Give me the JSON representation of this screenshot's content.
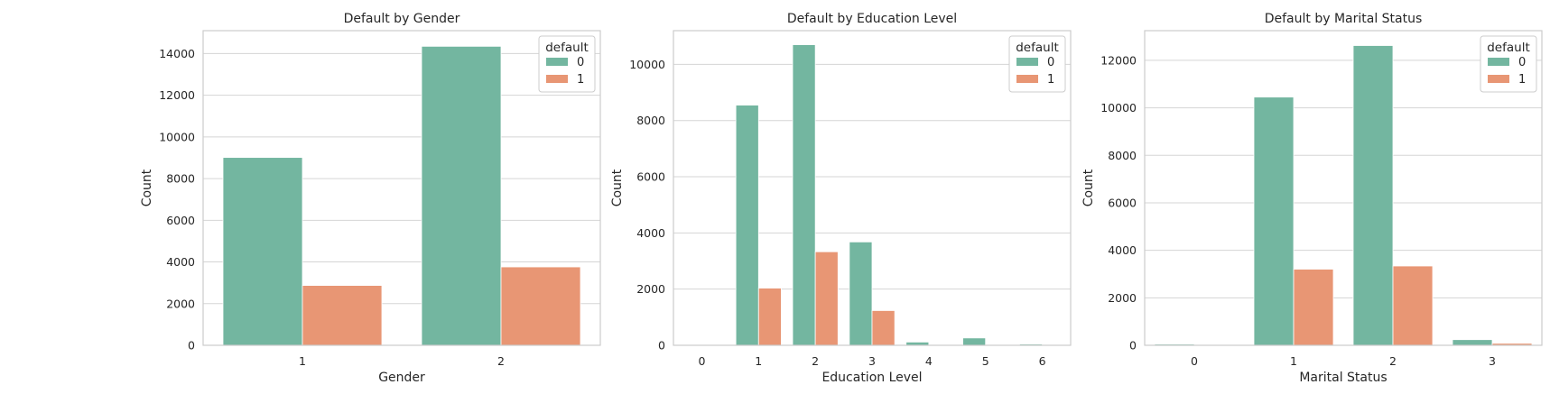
{
  "palette": {
    "series_0": "#73b6a0",
    "series_1": "#e89674",
    "grid": "#d5d5d5",
    "frame": "#cccccc"
  },
  "chart_data": [
    {
      "type": "bar",
      "title": "Default by Gender",
      "xlabel": "Gender",
      "ylabel": "Count",
      "categories": [
        "1",
        "2"
      ],
      "ylim": [
        0,
        15100
      ],
      "yticks": [
        0,
        2000,
        4000,
        6000,
        8000,
        10000,
        12000,
        14000
      ],
      "grid": true,
      "legend": {
        "title": "default",
        "placement": "top-right"
      },
      "series": [
        {
          "name": "0",
          "values": [
            9015,
            14349
          ]
        },
        {
          "name": "1",
          "values": [
            2873,
            3763
          ]
        }
      ]
    },
    {
      "type": "bar",
      "title": "Default by Education Level",
      "xlabel": "Education Level",
      "ylabel": "Count",
      "categories": [
        "0",
        "1",
        "2",
        "3",
        "4",
        "5",
        "6"
      ],
      "ylim": [
        0,
        11200
      ],
      "yticks": [
        0,
        2000,
        4000,
        6000,
        8000,
        10000
      ],
      "grid": true,
      "legend": {
        "title": "default",
        "placement": "top-right"
      },
      "series": [
        {
          "name": "0",
          "values": [
            14,
            8549,
            10700,
            3680,
            116,
            262,
            43
          ]
        },
        {
          "name": "1",
          "values": [
            0,
            2036,
            3330,
            1237,
            7,
            18,
            8
          ]
        }
      ]
    },
    {
      "type": "bar",
      "title": "Default by Marital Status",
      "xlabel": "Marital Status",
      "ylabel": "Count",
      "categories": [
        "0",
        "1",
        "2",
        "3"
      ],
      "ylim": [
        0,
        13250
      ],
      "yticks": [
        0,
        2000,
        4000,
        6000,
        8000,
        10000,
        12000
      ],
      "grid": true,
      "legend": {
        "title": "default",
        "placement": "top-right"
      },
      "series": [
        {
          "name": "0",
          "values": [
            49,
            10453,
            12623,
            239
          ]
        },
        {
          "name": "1",
          "values": [
            5,
            3206,
            3341,
            84
          ]
        }
      ]
    }
  ]
}
